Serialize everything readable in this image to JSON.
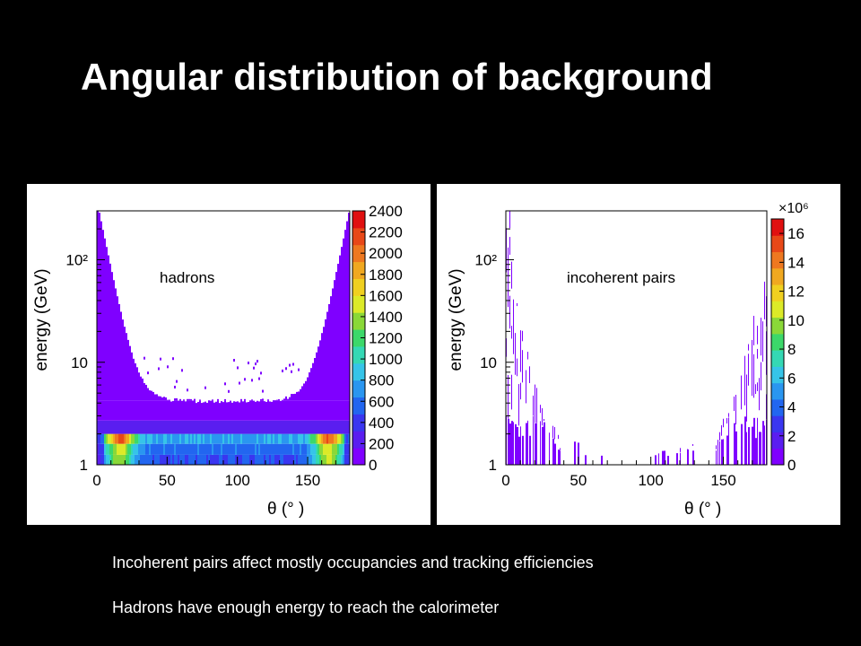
{
  "slide": {
    "title": "Angular distribution of background",
    "bullets": [
      "Incoherent pairs affect mostly occupancies and tracking efficiencies",
      "Hadrons have enough energy to reach the calorimeter"
    ]
  },
  "colors": {
    "background": "#000000",
    "panel": "#ffffff",
    "palette": [
      "#7f00ff",
      "#5a1ef0",
      "#3a36f0",
      "#2266f0",
      "#2a96f0",
      "#36c4e8",
      "#34d8b4",
      "#3cd86a",
      "#8ad838",
      "#dcea28",
      "#f0d020",
      "#f0a820",
      "#ee7820",
      "#e84818",
      "#e01010"
    ]
  },
  "chart_data": [
    {
      "type": "heatmap",
      "name": "hadrons",
      "annotation": "hadrons",
      "xlabel": "θ (° )",
      "ylabel": "energy (GeV)",
      "x_ticks": [
        "0",
        "50",
        "100",
        "150"
      ],
      "y_ticks": [
        "1",
        "10",
        "10²"
      ],
      "y_scale": "log",
      "x_range": [
        0,
        180
      ],
      "y_range": [
        1,
        300
      ],
      "colorbar": {
        "range": [
          0,
          2400
        ],
        "ticks": [
          "0",
          "200",
          "400",
          "600",
          "800",
          "1000",
          "1200",
          "1400",
          "1600",
          "1800",
          "2000",
          "2200",
          "2400"
        ]
      },
      "description": "U-shaped: low-energy band 1–2 GeV populated at all angles (highest near 10°–30° and 150°–170°), filled region up to ~4 GeV across 20–160°, rising steeply toward 300 GeV near 0° and 180°"
    },
    {
      "type": "heatmap",
      "name": "incoherent pairs",
      "annotation": "incoherent pairs",
      "xlabel": "θ (° )",
      "ylabel": "energy (GeV)",
      "x_ticks": [
        "0",
        "50",
        "100",
        "150"
      ],
      "y_ticks": [
        "1",
        "10",
        "10²"
      ],
      "y_scale": "log",
      "x_range": [
        0,
        180
      ],
      "y_range": [
        1,
        300
      ],
      "colorbar": {
        "range": [
          0,
          17
        ],
        "multiplier": "×10⁶",
        "ticks": [
          "0",
          "2",
          "4",
          "6",
          "8",
          "10",
          "12",
          "14",
          "16"
        ]
      },
      "description": "Sparse vertical streaks concentrated near 0°–45° and 120°–180°, nearly empty around 60°–110°, extending to high energy only near the beam axis"
    }
  ]
}
